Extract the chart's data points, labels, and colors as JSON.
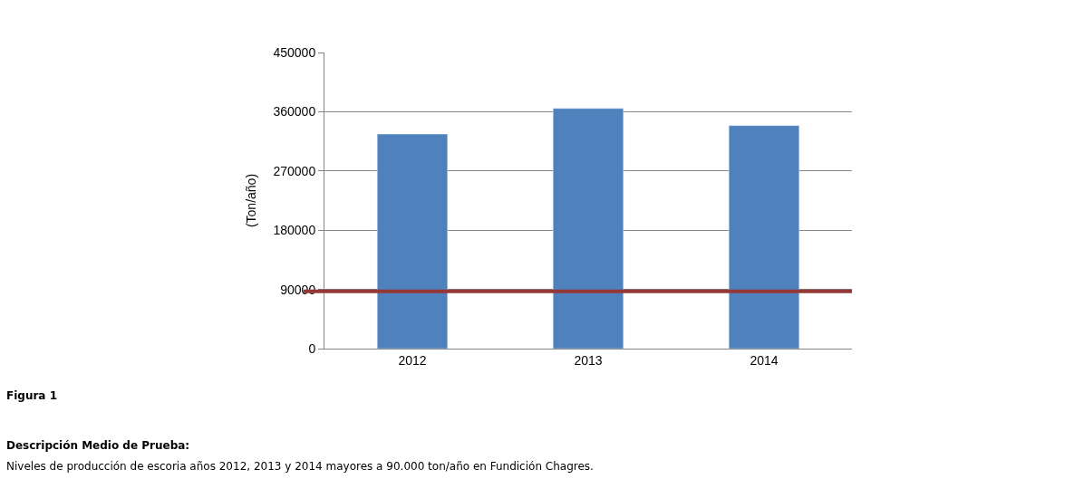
{
  "chart_data": {
    "type": "bar",
    "ylabel": "(Ton/año)",
    "categories": [
      "2012",
      "2013",
      "2014"
    ],
    "values": [
      326000,
      365000,
      339000
    ],
    "color": "#4f81bd",
    "ylim": [
      0,
      450000
    ],
    "yticks": [
      0,
      90000,
      180000,
      270000,
      360000,
      450000
    ],
    "grid": "y",
    "ref_lines": [
      {
        "axis": "y",
        "value": 87000,
        "color": "#953735",
        "line_style": "solid"
      }
    ],
    "annotations": [
      "Figura 1",
      "Descripción Medio de Prueba:",
      "Niveles de producción de escoria años 2012, 2013 y 2014 mayores a 90.000 ton/año en Fundición Chagres."
    ]
  }
}
